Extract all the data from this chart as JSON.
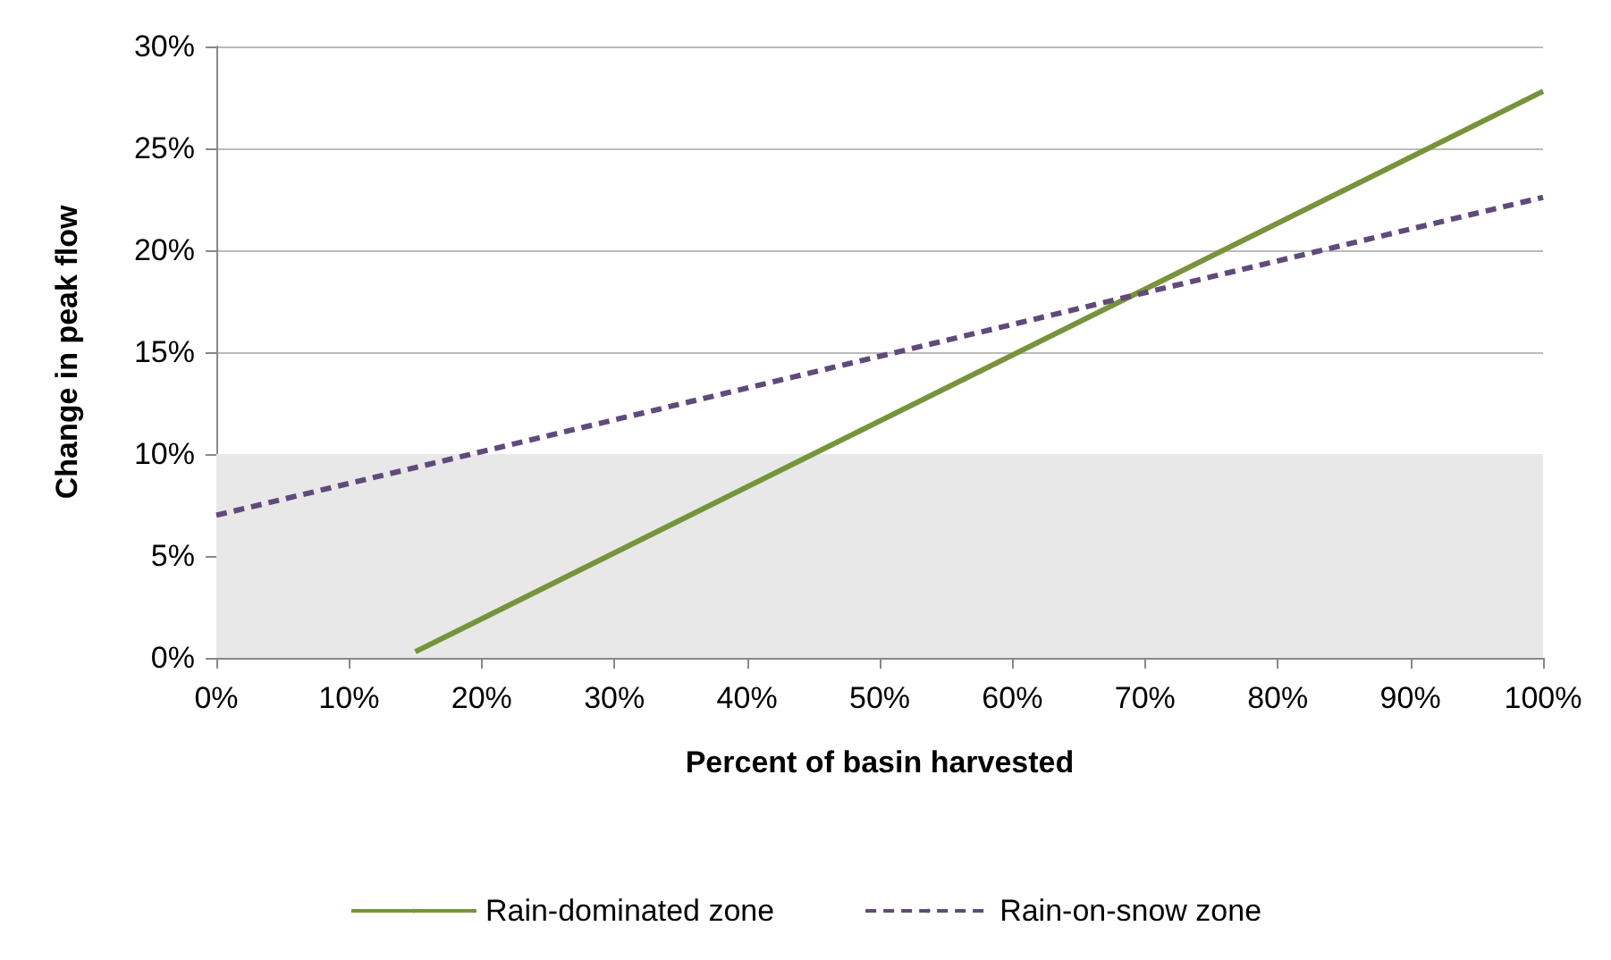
{
  "chart_data": {
    "type": "line",
    "xlabel": "Percent of basin harvested",
    "ylabel": "Change in peak flow",
    "series": [
      {
        "name": "Rain-dominated zone",
        "color": "#77933c",
        "x": [
          15,
          100
        ],
        "values": [
          0.3,
          27.8
        ],
        "line_style": "solid"
      },
      {
        "name": "Rain-on-snow zone",
        "color": "#604a7b",
        "x": [
          0,
          100
        ],
        "values": [
          7.0,
          22.6
        ],
        "line_style": "dashed"
      }
    ],
    "xlim": [
      0,
      100
    ],
    "xticks": [
      {
        "value": 0,
        "label": "0%"
      },
      {
        "value": 10,
        "label": "10%"
      },
      {
        "value": 20,
        "label": "20%"
      },
      {
        "value": 30,
        "label": "30%"
      },
      {
        "value": 40,
        "label": "40%"
      },
      {
        "value": 50,
        "label": "50%"
      },
      {
        "value": 60,
        "label": "60%"
      },
      {
        "value": 70,
        "label": "70%"
      },
      {
        "value": 80,
        "label": "80%"
      },
      {
        "value": 90,
        "label": "90%"
      },
      {
        "value": 100,
        "label": "100%"
      }
    ],
    "ylim": [
      0,
      30
    ],
    "yticks": [
      {
        "value": 0,
        "label": "0%"
      },
      {
        "value": 5,
        "label": "5%"
      },
      {
        "value": 10,
        "label": "10%"
      },
      {
        "value": 15,
        "label": "15%"
      },
      {
        "value": 20,
        "label": "20%"
      },
      {
        "value": 25,
        "label": "25%"
      },
      {
        "value": 30,
        "label": "30%"
      }
    ],
    "bands": [
      {
        "axis": "y",
        "from": 0,
        "to": 10,
        "color": "#e8e8e8"
      }
    ],
    "grid": "y",
    "legend": "bottom",
    "marker": "none"
  }
}
